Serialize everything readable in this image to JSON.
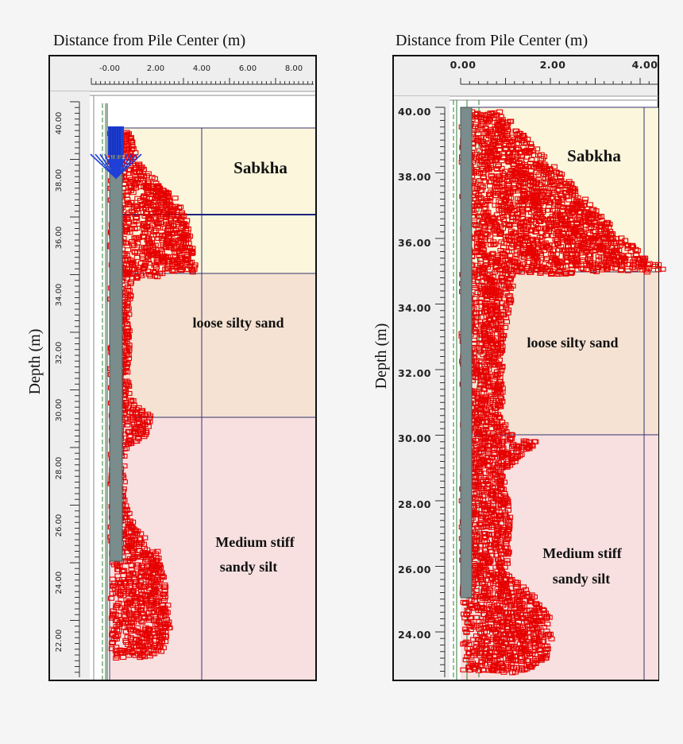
{
  "colors": {
    "sabkha": "#fbf6dc",
    "loose_silty_sand": "#f5e2d2",
    "medium_stiff_sandy_silt": "#f8e0e0",
    "pile": "#7a8c8c",
    "plastic_points": "#e60000",
    "load_arrows": "#1f3fd6",
    "grid": "#34346e"
  },
  "panels": [
    {
      "x_axis_title": "Distance from Pile Center (m)",
      "y_axis_title": "Depth (m)",
      "x_ticks": [
        "-0.00",
        "2.00",
        "4.00",
        "6.00",
        "8.00"
      ],
      "y_ticks": [
        "40.00",
        "38.00",
        "36.00",
        "34.00",
        "32.00",
        "30.00",
        "28.00",
        "26.00",
        "24.00",
        "22.00"
      ],
      "layers": [
        {
          "name": "Sabkha",
          "label_lines": [
            "Sabkha"
          ],
          "top_depth": 39.75,
          "bottom_depth": 34.8
        },
        {
          "name": "loose silty sand",
          "label_lines": [
            "loose silty sand"
          ],
          "top_depth": 34.8,
          "bottom_depth": 29.8
        },
        {
          "name": "Medium stiff sandy silt",
          "label_lines": [
            "Medium stiff",
            "sandy silt"
          ],
          "top_depth": 29.8,
          "bottom_depth": 21.4
        }
      ],
      "pile": {
        "top_depth": 39.75,
        "tip_depth": 24.85
      },
      "water_table_depth": 36.75,
      "load_arrows": true,
      "plastic_zone_profile": [
        {
          "depth": 39.7,
          "extent": 0.9
        },
        {
          "depth": 38.8,
          "extent": 1.1
        },
        {
          "depth": 38.2,
          "extent": 1.7
        },
        {
          "depth": 37.4,
          "extent": 2.8
        },
        {
          "depth": 36.5,
          "extent": 3.4
        },
        {
          "depth": 35.5,
          "extent": 3.6
        },
        {
          "depth": 34.9,
          "extent": 3.7
        },
        {
          "depth": 34.6,
          "extent": 0.9
        },
        {
          "depth": 32.5,
          "extent": 0.8
        },
        {
          "depth": 30.5,
          "extent": 0.8
        },
        {
          "depth": 29.8,
          "extent": 1.8
        },
        {
          "depth": 29.2,
          "extent": 1.6
        },
        {
          "depth": 28.6,
          "extent": 0.6
        },
        {
          "depth": 27.0,
          "extent": 0.6
        },
        {
          "depth": 26.0,
          "extent": 1.0
        },
        {
          "depth": 25.2,
          "extent": 2.0
        },
        {
          "depth": 24.0,
          "extent": 2.4
        },
        {
          "depth": 22.5,
          "extent": 2.6
        },
        {
          "depth": 21.6,
          "extent": 2.2
        },
        {
          "depth": 21.4,
          "extent": 1.2
        }
      ]
    },
    {
      "x_axis_title": "Distance from Pile Center (m)",
      "y_axis_title": "Depth (m)",
      "x_ticks": [
        "0.00",
        "2.00",
        "4.00"
      ],
      "y_ticks": [
        "40.00",
        "38.00",
        "36.00",
        "34.00",
        "32.00",
        "30.00",
        "28.00",
        "26.00",
        "24.00"
      ],
      "layers": [
        {
          "name": "Sabkha",
          "label_lines": [
            "Sabkha"
          ],
          "top_depth": 40.0,
          "bottom_depth": 35.05
        },
        {
          "name": "loose silty sand",
          "label_lines": [
            "loose silty sand"
          ],
          "top_depth": 35.05,
          "bottom_depth": 30.1
        },
        {
          "name": "Medium stiff sandy silt",
          "label_lines": [
            "Medium stiff",
            "sandy silt"
          ],
          "top_depth": 30.1,
          "bottom_depth": 22.8
        }
      ],
      "pile": {
        "top_depth": 40.0,
        "tip_depth": 25.1
      },
      "water_table_depth": null,
      "load_arrows": false,
      "plastic_zone_profile": [
        {
          "depth": 40.0,
          "extent": 0.9
        },
        {
          "depth": 39.0,
          "extent": 1.6
        },
        {
          "depth": 38.0,
          "extent": 2.3
        },
        {
          "depth": 37.0,
          "extent": 3.0
        },
        {
          "depth": 36.0,
          "extent": 3.7
        },
        {
          "depth": 35.2,
          "extent": 4.5
        },
        {
          "depth": 35.05,
          "extent": 1.2
        },
        {
          "depth": 33.0,
          "extent": 0.9
        },
        {
          "depth": 31.0,
          "extent": 0.9
        },
        {
          "depth": 30.2,
          "extent": 1.0
        },
        {
          "depth": 29.9,
          "extent": 1.7
        },
        {
          "depth": 29.6,
          "extent": 1.4
        },
        {
          "depth": 29.0,
          "extent": 0.9
        },
        {
          "depth": 27.5,
          "extent": 1.1
        },
        {
          "depth": 26.0,
          "extent": 1.0
        },
        {
          "depth": 25.2,
          "extent": 1.6
        },
        {
          "depth": 24.5,
          "extent": 2.0
        },
        {
          "depth": 23.5,
          "extent": 2.0
        },
        {
          "depth": 22.9,
          "extent": 1.5
        }
      ]
    }
  ]
}
